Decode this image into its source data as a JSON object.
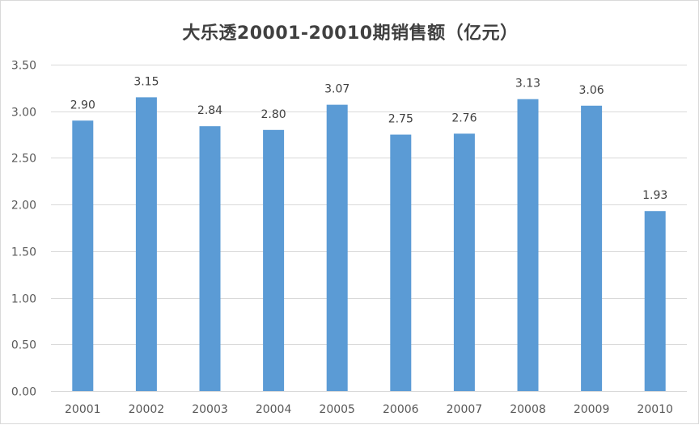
{
  "chart_data": {
    "type": "bar",
    "title": "大乐透20001-20010期销售额（亿元）",
    "categories": [
      "20001",
      "20002",
      "20003",
      "20004",
      "20005",
      "20006",
      "20007",
      "20008",
      "20009",
      "20010"
    ],
    "values": [
      2.9,
      3.15,
      2.84,
      2.8,
      3.07,
      2.75,
      2.76,
      3.13,
      3.06,
      1.93
    ],
    "data_labels": [
      "2.90",
      "3.15",
      "2.84",
      "2.80",
      "3.07",
      "2.75",
      "2.76",
      "3.13",
      "3.06",
      "1.93"
    ],
    "y_ticks": [
      "0.00",
      "0.50",
      "1.00",
      "1.50",
      "2.00",
      "2.50",
      "3.00",
      "3.50"
    ],
    "xlabel": "",
    "ylabel": "",
    "ylim": [
      0,
      3.5
    ],
    "grid": true,
    "legend": "none",
    "bar_color": "#5b9bd5",
    "grid_color": "#d9d9d9",
    "text_color": "#595959"
  }
}
